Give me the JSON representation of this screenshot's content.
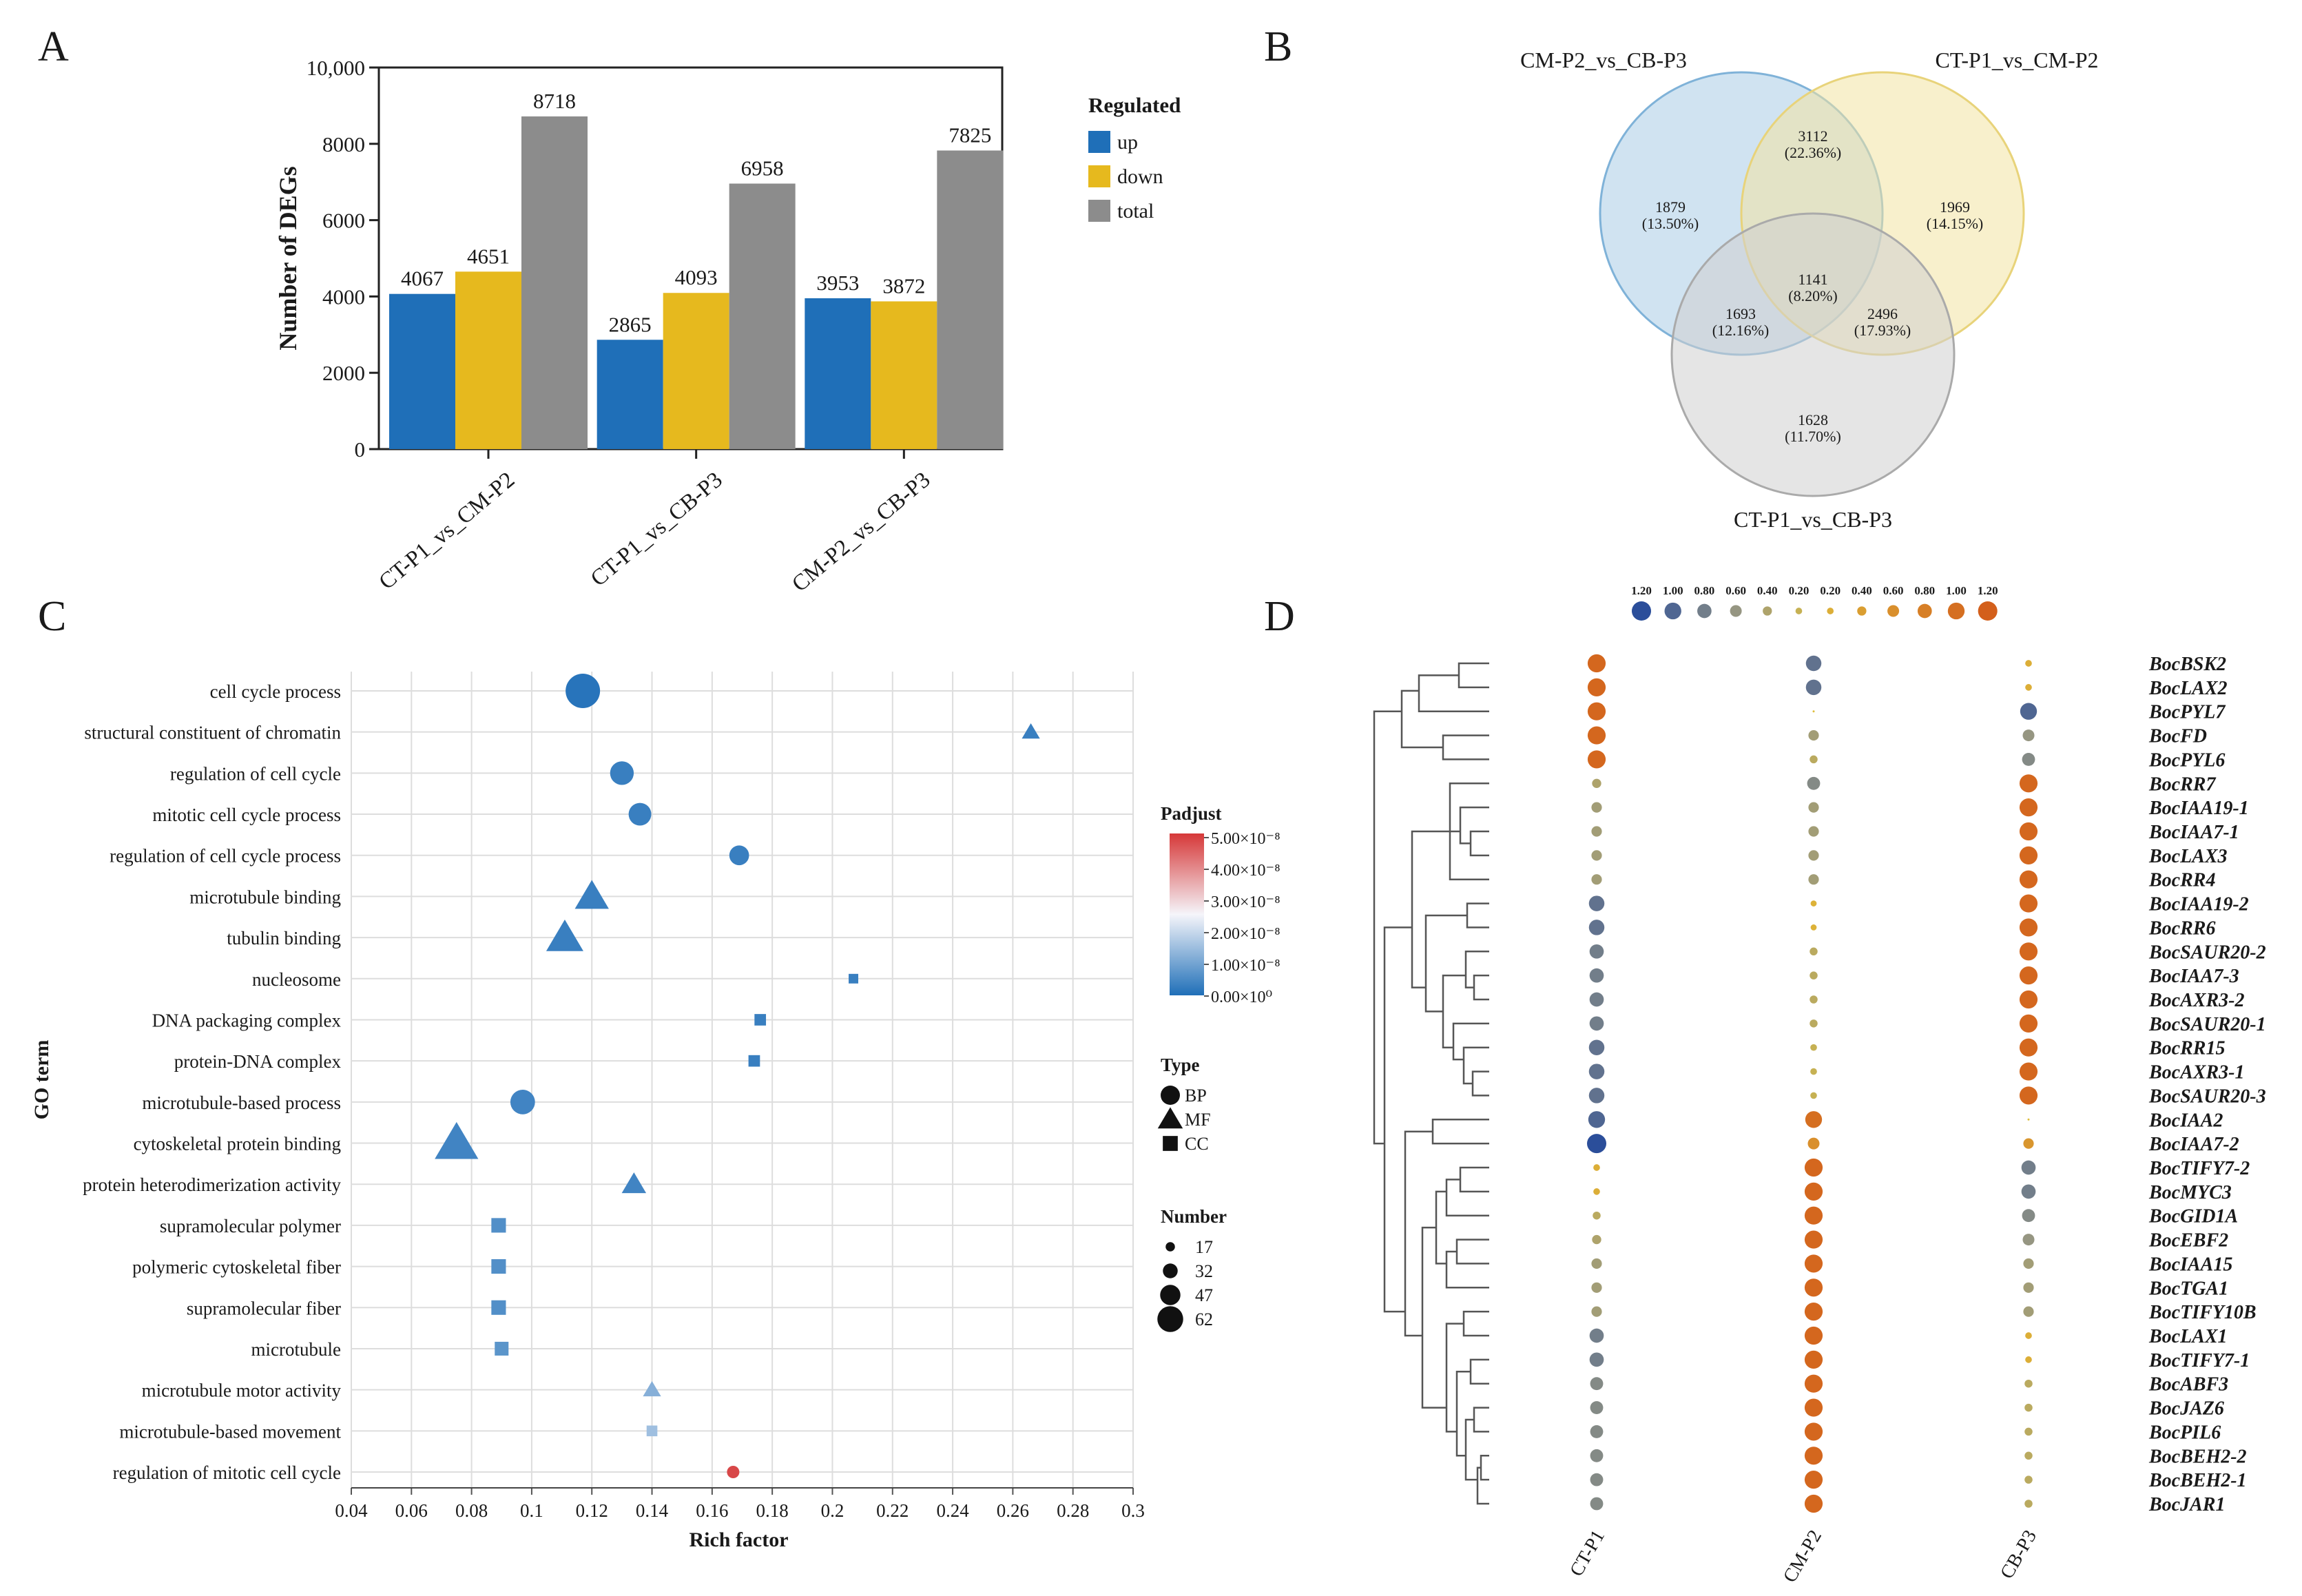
{
  "panels": {
    "A": "A",
    "B": "B",
    "C": "C",
    "D": "D"
  },
  "colors": {
    "up": "#1f6fb8",
    "down": "#e6b91e",
    "total": "#8c8c8c",
    "venn_blue": "#a9cce5",
    "venn_yellow": "#f3e3a2",
    "venn_gray": "#cfcfcf",
    "grid": "#dddddd",
    "heat_blue": "#2b4e9a",
    "heat_orange": "#d35f1b"
  },
  "chart_data": [
    {
      "id": "A",
      "type": "bar",
      "title": "",
      "xlabel": "",
      "ylabel": "Number of DEGs",
      "ylim": [
        0,
        10000
      ],
      "yticks": [
        0,
        2000,
        4000,
        6000,
        8000,
        10000
      ],
      "ytick_labels": [
        "0",
        "2000",
        "4000",
        "6000",
        "8000",
        "10,000"
      ],
      "categories": [
        "CT-P1_vs_CM-P2",
        "CT-P1_vs_CB-P3",
        "CM-P2_vs_CB-P3"
      ],
      "legend_title": "Regulated",
      "series": [
        {
          "name": "up",
          "values": [
            4067,
            2865,
            3953
          ]
        },
        {
          "name": "down",
          "values": [
            4651,
            4093,
            3872
          ]
        },
        {
          "name": "total",
          "values": [
            8718,
            6958,
            7825
          ]
        }
      ]
    },
    {
      "id": "B",
      "type": "venn",
      "sets": [
        "CM-P2_vs_CB-P3",
        "CT-P1_vs_CM-P2",
        "CT-P1_vs_CB-P3"
      ],
      "regions": [
        {
          "sets": [
            "CM-P2_vs_CB-P3"
          ],
          "count": "1879",
          "pct": "(13.50%)"
        },
        {
          "sets": [
            "CT-P1_vs_CM-P2"
          ],
          "count": "1969",
          "pct": "(14.15%)"
        },
        {
          "sets": [
            "CT-P1_vs_CB-P3"
          ],
          "count": "1628",
          "pct": "(11.70%)"
        },
        {
          "sets": [
            "CM-P2_vs_CB-P3",
            "CT-P1_vs_CM-P2"
          ],
          "count": "3112",
          "pct": "(22.36%)"
        },
        {
          "sets": [
            "CM-P2_vs_CB-P3",
            "CT-P1_vs_CB-P3"
          ],
          "count": "1693",
          "pct": "(12.16%)"
        },
        {
          "sets": [
            "CT-P1_vs_CM-P2",
            "CT-P1_vs_CB-P3"
          ],
          "count": "2496",
          "pct": "(17.93%)"
        },
        {
          "sets": [
            "CM-P2_vs_CB-P3",
            "CT-P1_vs_CM-P2",
            "CT-P1_vs_CB-P3"
          ],
          "count": "1141",
          "pct": "(8.20%)"
        }
      ]
    },
    {
      "id": "C",
      "type": "scatter",
      "xlabel": "Rich factor",
      "ylabel": "GO term",
      "xlim": [
        0.04,
        0.3
      ],
      "xticks": [
        0.04,
        0.06,
        0.08,
        0.1,
        0.12,
        0.14,
        0.16,
        0.18,
        0.2,
        0.22,
        0.24,
        0.26,
        0.28,
        0.3
      ],
      "xtick_labels": [
        "0.04",
        "0.06",
        "0.08",
        "0.1",
        "0.12",
        "0.14",
        "0.16",
        "0.18",
        "0.2",
        "0.22",
        "0.24",
        "0.26",
        "0.28",
        "0.3"
      ],
      "legend_padjust_title": "Padjust",
      "legend_padjust_labels": [
        "5.00×10⁻⁸",
        "4.00×10⁻⁸",
        "3.00×10⁻⁸",
        "2.00×10⁻⁸",
        "1.00×10⁻⁸",
        "0.00×10⁰"
      ],
      "legend_type_title": "Type",
      "legend_type_labels": [
        "BP",
        "MF",
        "CC"
      ],
      "legend_number_title": "Number",
      "legend_number_values": [
        17,
        32,
        47,
        62
      ],
      "terms": [
        {
          "term": "cell cycle process",
          "rich": 0.117,
          "type": "BP",
          "number": 62,
          "padj": 0.1
        },
        {
          "term": "structural constituent of chromatin",
          "rich": 0.266,
          "type": "MF",
          "number": 20,
          "padj": 0.3
        },
        {
          "term": "regulation of cell cycle",
          "rich": 0.13,
          "type": "BP",
          "number": 40,
          "padj": 0.3
        },
        {
          "term": "mitotic cell cycle process",
          "rich": 0.136,
          "type": "BP",
          "number": 38,
          "padj": 0.3
        },
        {
          "term": "regulation of cell cycle process",
          "rich": 0.169,
          "type": "BP",
          "number": 32,
          "padj": 0.3
        },
        {
          "term": "microtubule binding",
          "rich": 0.12,
          "type": "MF",
          "number": 45,
          "padj": 0.3
        },
        {
          "term": "tubulin binding",
          "rich": 0.111,
          "type": "MF",
          "number": 50,
          "padj": 0.3
        },
        {
          "term": "nucleosome",
          "rich": 0.207,
          "type": "CC",
          "number": 17,
          "padj": 0.3
        },
        {
          "term": "DNA packaging complex",
          "rich": 0.176,
          "type": "CC",
          "number": 22,
          "padj": 0.3
        },
        {
          "term": "protein-DNA complex",
          "rich": 0.174,
          "type": "CC",
          "number": 22,
          "padj": 0.3
        },
        {
          "term": "microtubule-based process",
          "rich": 0.097,
          "type": "BP",
          "number": 42,
          "padj": 0.4
        },
        {
          "term": "cytoskeletal protein binding",
          "rich": 0.075,
          "type": "MF",
          "number": 60,
          "padj": 0.4
        },
        {
          "term": "protein heterodimerization activity",
          "rich": 0.134,
          "type": "MF",
          "number": 30,
          "padj": 0.4
        },
        {
          "term": "supramolecular polymer",
          "rich": 0.089,
          "type": "CC",
          "number": 30,
          "padj": 0.6
        },
        {
          "term": "polymeric cytoskeletal fiber",
          "rich": 0.089,
          "type": "CC",
          "number": 30,
          "padj": 0.6
        },
        {
          "term": "supramolecular fiber",
          "rich": 0.089,
          "type": "CC",
          "number": 30,
          "padj": 0.6
        },
        {
          "term": "microtubule",
          "rich": 0.09,
          "type": "CC",
          "number": 28,
          "padj": 0.7
        },
        {
          "term": "microtubule motor activity",
          "rich": 0.14,
          "type": "MF",
          "number": 20,
          "padj": 1.2
        },
        {
          "term": "microtubule-based movement",
          "rich": 0.14,
          "type": "CC",
          "number": 20,
          "padj": 1.5
        },
        {
          "term": "regulation of mitotic cell cycle",
          "rich": 0.167,
          "type": "BP",
          "number": 17,
          "padj": 4.8
        }
      ]
    },
    {
      "id": "D",
      "type": "heatmap",
      "legend_labels": [
        "1.20",
        "1.00",
        "0.80",
        "0.60",
        "0.40",
        "0.20",
        "0.20",
        "0.40",
        "0.60",
        "0.80",
        "1.00",
        "1.20"
      ],
      "legend_values": [
        -1.2,
        -1.0,
        -0.8,
        -0.6,
        -0.4,
        -0.2,
        0.2,
        0.4,
        0.6,
        0.8,
        1.0,
        1.2
      ],
      "columns": [
        "CT-P1",
        "CM-P2",
        "CB-P3"
      ],
      "rows": [
        {
          "gene": "BocBSK2",
          "values": [
            1.1,
            -0.9,
            0.2
          ]
        },
        {
          "gene": "BocLAX2",
          "values": [
            1.1,
            -0.9,
            0.2
          ]
        },
        {
          "gene": "BocPYL7",
          "values": [
            1.1,
            0.0,
            -1.0
          ]
        },
        {
          "gene": "BocFD",
          "values": [
            1.1,
            -0.5,
            -0.6
          ]
        },
        {
          "gene": "BocPYL6",
          "values": [
            1.1,
            -0.3,
            -0.7
          ]
        },
        {
          "gene": "BocRR7",
          "values": [
            -0.4,
            -0.7,
            1.1
          ]
        },
        {
          "gene": "BocIAA19-1",
          "values": [
            -0.5,
            -0.5,
            1.1
          ]
        },
        {
          "gene": "BocIAA7-1",
          "values": [
            -0.5,
            -0.5,
            1.1
          ]
        },
        {
          "gene": "BocLAX3",
          "values": [
            -0.5,
            -0.5,
            1.1
          ]
        },
        {
          "gene": "BocRR4",
          "values": [
            -0.5,
            -0.5,
            1.1
          ]
        },
        {
          "gene": "BocIAA19-2",
          "values": [
            -0.9,
            0.15,
            1.1
          ]
        },
        {
          "gene": "BocRR6",
          "values": [
            -0.9,
            0.15,
            1.1
          ]
        },
        {
          "gene": "BocSAUR20-2",
          "values": [
            -0.8,
            -0.3,
            1.1
          ]
        },
        {
          "gene": "BocIAA7-3",
          "values": [
            -0.8,
            -0.3,
            1.1
          ]
        },
        {
          "gene": "BocAXR3-2",
          "values": [
            -0.8,
            -0.3,
            1.1
          ]
        },
        {
          "gene": "BocSAUR20-1",
          "values": [
            -0.8,
            -0.3,
            1.1
          ]
        },
        {
          "gene": "BocRR15",
          "values": [
            -0.9,
            -0.2,
            1.1
          ]
        },
        {
          "gene": "BocAXR3-1",
          "values": [
            -0.9,
            -0.2,
            1.1
          ]
        },
        {
          "gene": "BocSAUR20-3",
          "values": [
            -0.9,
            -0.2,
            1.1
          ]
        },
        {
          "gene": "BocIAA2",
          "values": [
            -1.0,
            1.0,
            0.0
          ]
        },
        {
          "gene": "BocIAA7-2",
          "values": [
            -1.2,
            0.6,
            0.5
          ]
        },
        {
          "gene": "BocTIFY7-2",
          "values": [
            0.2,
            1.1,
            -0.8
          ]
        },
        {
          "gene": "BocMYC3",
          "values": [
            0.2,
            1.1,
            -0.8
          ]
        },
        {
          "gene": "BocGID1A",
          "values": [
            -0.3,
            1.1,
            -0.7
          ]
        },
        {
          "gene": "BocEBF2",
          "values": [
            -0.4,
            1.1,
            -0.6
          ]
        },
        {
          "gene": "BocIAA15",
          "values": [
            -0.5,
            1.1,
            -0.5
          ]
        },
        {
          "gene": "BocTGA1",
          "values": [
            -0.5,
            1.1,
            -0.5
          ]
        },
        {
          "gene": "BocTIFY10B",
          "values": [
            -0.5,
            1.1,
            -0.5
          ]
        },
        {
          "gene": "BocLAX1",
          "values": [
            -0.8,
            1.1,
            0.2
          ]
        },
        {
          "gene": "BocTIFY7-1",
          "values": [
            -0.8,
            1.1,
            0.2
          ]
        },
        {
          "gene": "BocABF3",
          "values": [
            -0.7,
            1.1,
            -0.3
          ]
        },
        {
          "gene": "BocJAZ6",
          "values": [
            -0.7,
            1.1,
            -0.3
          ]
        },
        {
          "gene": "BocPIL6",
          "values": [
            -0.7,
            1.1,
            -0.3
          ]
        },
        {
          "gene": "BocBEH2-2",
          "values": [
            -0.7,
            1.1,
            -0.3
          ]
        },
        {
          "gene": "BocBEH2-1",
          "values": [
            -0.7,
            1.1,
            -0.3
          ]
        },
        {
          "gene": "BocJAR1",
          "values": [
            -0.7,
            1.1,
            -0.3
          ]
        }
      ]
    }
  ]
}
